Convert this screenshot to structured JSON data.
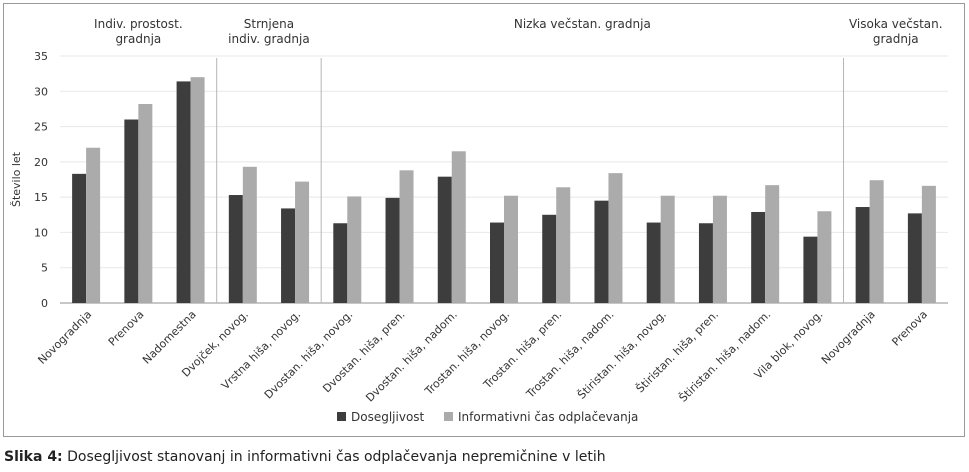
{
  "chart_data": {
    "type": "bar",
    "ylabel": "Število let",
    "ylim": [
      0,
      35
    ],
    "yticks": [
      0,
      5,
      10,
      15,
      20,
      25,
      30,
      35
    ],
    "grid": true,
    "legend_position": "bottom-center",
    "groups": [
      {
        "label_lines": [
          "Indiv. prostost.",
          "gradnja"
        ],
        "categories": [
          "Novogradnja",
          "Prenova",
          "Nadomestna"
        ]
      },
      {
        "label_lines": [
          "Strnjena",
          "indiv. gradnja"
        ],
        "categories": [
          "Dvojček, novog.",
          "Vrstna hiša, novog."
        ]
      },
      {
        "label_lines": [
          "Nizka večstan. gradnja"
        ],
        "categories": [
          "Dvostan. hiša, novog.",
          "Dvostan. hiša, pren.",
          "Dvostan. hiša, nadom.",
          "Trostan. hiša, novog.",
          "Trostan. hiša, pren.",
          "Trostan. hiša, nadom.",
          "Štiristan. hiša, novog.",
          "Štiristan. hiša, pren.",
          "Štiristan. hiša, nadom.",
          "Vila blok, novog."
        ]
      },
      {
        "label_lines": [
          "Visoka večstan.",
          "gradnja"
        ],
        "categories": [
          "Novogradnja",
          "Prenova"
        ]
      }
    ],
    "categories": [
      "Novogradnja",
      "Prenova",
      "Nadomestna",
      "Dvojček, novog.",
      "Vrstna hiša, novog.",
      "Dvostan. hiša, novog.",
      "Dvostan. hiša, pren.",
      "Dvostan. hiša, nadom.",
      "Trostan. hiša, novog.",
      "Trostan. hiša, pren.",
      "Trostan. hiša, nadom.",
      "Štiristan. hiša, novog.",
      "Štiristan. hiša, pren.",
      "Štiristan. hiša, nadom.",
      "Vila blok, novog.",
      "Novogradnja",
      "Prenova"
    ],
    "series": [
      {
        "name": "Dosegljivost",
        "color": "#3d3d3d",
        "values": [
          18.3,
          26.0,
          31.4,
          15.3,
          13.4,
          11.3,
          14.9,
          17.9,
          11.4,
          12.5,
          14.5,
          11.4,
          11.3,
          12.9,
          9.4,
          13.6,
          12.7
        ]
      },
      {
        "name": "Informativni čas odplačevanja",
        "color": "#ababab",
        "values": [
          22.0,
          28.2,
          32.0,
          19.3,
          17.2,
          15.1,
          18.8,
          21.5,
          15.2,
          16.4,
          18.4,
          15.2,
          15.2,
          16.7,
          13.0,
          17.4,
          16.6
        ]
      }
    ]
  },
  "caption": {
    "label": "Slika 4:",
    "text": " Dosegljivost stanovanj in informativni čas odplačevanja nepremičnine v letih"
  }
}
